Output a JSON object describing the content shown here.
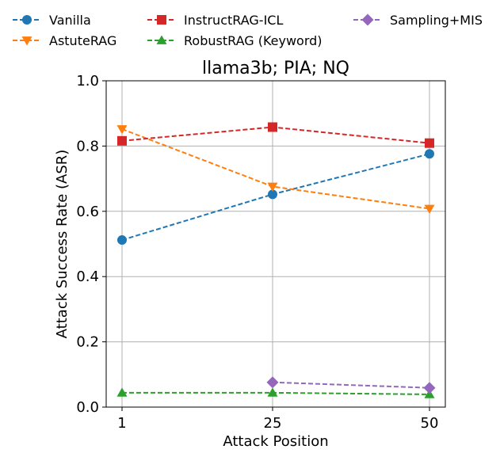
{
  "chart_data": {
    "type": "line",
    "title": "llama3b; PIA; NQ",
    "xlabel": "Attack Position",
    "ylabel": "Attack Success Rate (ASR)",
    "x": [
      1,
      25,
      50
    ],
    "x_tick_labels": [
      "1",
      "25",
      "50"
    ],
    "ylim": [
      0.0,
      1.0
    ],
    "y_ticks": [
      0.0,
      0.2,
      0.4,
      0.6,
      0.8,
      1.0
    ],
    "y_tick_labels": [
      "0.0",
      "0.2",
      "0.4",
      "0.6",
      "0.8",
      "1.0"
    ],
    "grid": true,
    "legend_position": "top, above plot, 3 columns",
    "series": [
      {
        "name": "Vanilla",
        "color": "#1f77b4",
        "marker": "circle",
        "x": [
          1,
          25,
          50
        ],
        "values": [
          0.512,
          0.652,
          0.776
        ]
      },
      {
        "name": "AstuteRAG",
        "color": "#ff7f0e",
        "marker": "triangle-down",
        "x": [
          1,
          25,
          50
        ],
        "values": [
          0.852,
          0.676,
          0.608
        ]
      },
      {
        "name": "InstructRAG-ICL",
        "color": "#d62728",
        "marker": "square",
        "x": [
          1,
          25,
          50
        ],
        "values": [
          0.816,
          0.858,
          0.809
        ]
      },
      {
        "name": "RobustRAG (Keyword)",
        "color": "#2ca02c",
        "marker": "triangle-up",
        "x": [
          1,
          25,
          50
        ],
        "values": [
          0.044,
          0.044,
          0.039
        ]
      },
      {
        "name": "Sampling+MIS",
        "color": "#9467bd",
        "marker": "diamond",
        "x": [
          25,
          50
        ],
        "values": [
          0.076,
          0.059
        ]
      }
    ]
  }
}
